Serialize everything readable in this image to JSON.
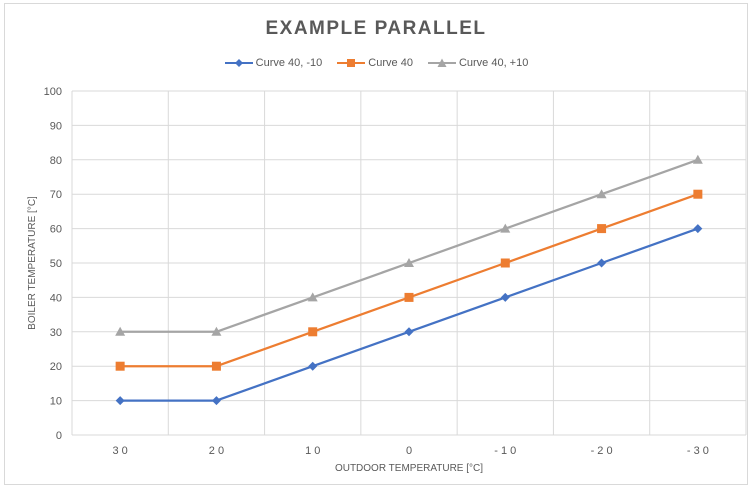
{
  "chart_data": {
    "type": "line",
    "title": "EXAMPLE PARALLEL",
    "xlabel": "OUTDOOR TEMPERATURE [°C]",
    "ylabel": "BOILER TEMPERATURE [°C]",
    "categories": [
      "30",
      "20",
      "10",
      "0",
      "-10",
      "-20",
      "-30"
    ],
    "category_labels": [
      "3 0",
      "2 0",
      "1 0",
      "0",
      "- 1 0",
      "- 2 0",
      "- 3 0"
    ],
    "ylim": [
      0,
      100
    ],
    "yticks": [
      0,
      10,
      20,
      30,
      40,
      50,
      60,
      70,
      80,
      90,
      100
    ],
    "grid": true,
    "legend_position": "top",
    "series": [
      {
        "name": "Curve 40, -10",
        "color": "#4472c4",
        "marker": "diamond",
        "values": [
          10,
          10,
          20,
          30,
          40,
          50,
          60
        ]
      },
      {
        "name": "Curve 40",
        "color": "#ed7d31",
        "marker": "square",
        "values": [
          20,
          20,
          30,
          40,
          50,
          60,
          70
        ]
      },
      {
        "name": "Curve 40, +10",
        "color": "#a5a5a5",
        "marker": "triangle",
        "values": [
          30,
          30,
          40,
          50,
          60,
          70,
          80
        ]
      }
    ]
  }
}
